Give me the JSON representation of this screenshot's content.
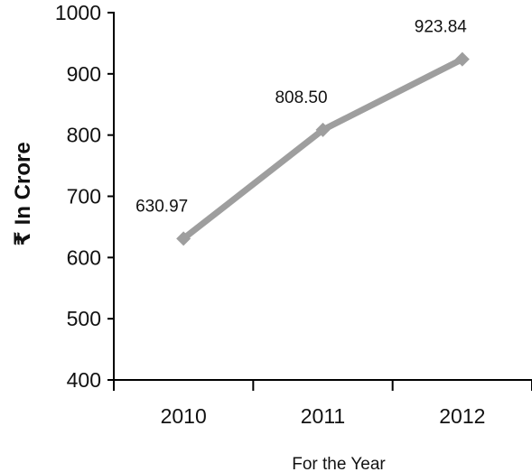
{
  "chart_data": {
    "type": "line",
    "categories": [
      "2010",
      "2011",
      "2012"
    ],
    "series": [
      {
        "values": [
          630.97,
          808.5,
          923.84
        ]
      }
    ],
    "data_labels": [
      "630.97",
      "808.50",
      "923.84"
    ],
    "title": "",
    "xlabel": "For the Year",
    "ylabel": "₹ In Crore",
    "ylim": [
      400,
      1000
    ],
    "yticks": [
      "400",
      "500",
      "600",
      "700",
      "800",
      "900",
      "1000"
    ],
    "grid": false,
    "legend": "none",
    "line_color": "#9e9e9e",
    "marker": "diamond"
  }
}
